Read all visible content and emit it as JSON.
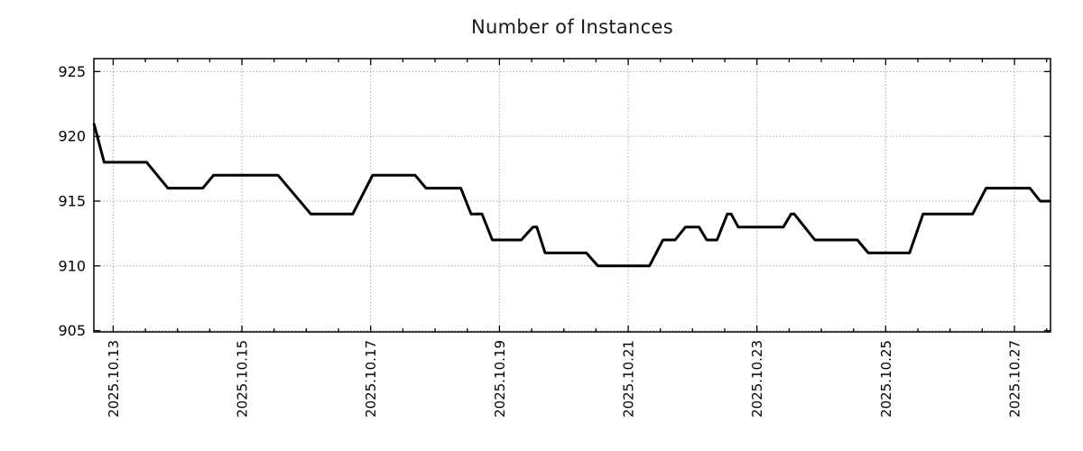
{
  "page": {
    "background": "#ffffff"
  },
  "chart_data": {
    "type": "line",
    "title": "Number of Instances",
    "xlabel": "",
    "ylabel": "",
    "legend": "none",
    "grid": {
      "show": true,
      "color": "#999999",
      "style": "dotted"
    },
    "border_color": "#000000",
    "x_axis": {
      "kind": "time",
      "tick_labels": [
        "2025.10.13",
        "2025.10.15",
        "2025.10.17",
        "2025.10.19",
        "2025.10.21",
        "2025.10.23",
        "2025.10.25",
        "2025.10.27"
      ],
      "tick_positions_days": [
        0,
        2,
        4,
        6,
        8,
        10,
        12,
        14
      ],
      "minor_tick_interval_days": 0.5,
      "range_days": [
        -0.3,
        14.56
      ],
      "label_rotation_deg": -90
    },
    "y_axis": {
      "tick_labels": [
        "905",
        "910",
        "915",
        "920",
        "925"
      ],
      "tick_values": [
        905,
        910,
        915,
        920,
        925
      ],
      "range": [
        904.9,
        926.0
      ]
    },
    "series": [
      {
        "name": "instances",
        "color": "#000000",
        "line_width": 3,
        "points_day_value": [
          [
            -0.3,
            921
          ],
          [
            -0.14,
            918
          ],
          [
            0.52,
            918
          ],
          [
            0.85,
            916
          ],
          [
            1.39,
            916
          ],
          [
            1.56,
            917
          ],
          [
            2.56,
            917
          ],
          [
            3.07,
            914
          ],
          [
            3.72,
            914
          ],
          [
            4.03,
            917
          ],
          [
            4.69,
            917
          ],
          [
            4.86,
            916
          ],
          [
            5.4,
            916
          ],
          [
            5.56,
            914
          ],
          [
            5.73,
            914
          ],
          [
            5.89,
            912
          ],
          [
            6.34,
            912
          ],
          [
            6.52,
            913
          ],
          [
            6.58,
            913
          ],
          [
            6.71,
            911
          ],
          [
            7.35,
            911
          ],
          [
            7.53,
            910
          ],
          [
            8.33,
            910
          ],
          [
            8.54,
            912
          ],
          [
            8.73,
            912
          ],
          [
            8.89,
            913
          ],
          [
            9.1,
            913
          ],
          [
            9.22,
            912
          ],
          [
            9.38,
            912
          ],
          [
            9.54,
            914
          ],
          [
            9.6,
            914
          ],
          [
            9.71,
            913
          ],
          [
            10.41,
            913
          ],
          [
            10.53,
            914
          ],
          [
            10.58,
            914
          ],
          [
            10.9,
            912
          ],
          [
            11.56,
            912
          ],
          [
            11.73,
            911
          ],
          [
            12.37,
            911
          ],
          [
            12.58,
            914
          ],
          [
            13.35,
            914
          ],
          [
            13.56,
            916
          ],
          [
            14.24,
            916
          ],
          [
            14.4,
            915
          ],
          [
            14.56,
            915
          ]
        ]
      }
    ]
  }
}
